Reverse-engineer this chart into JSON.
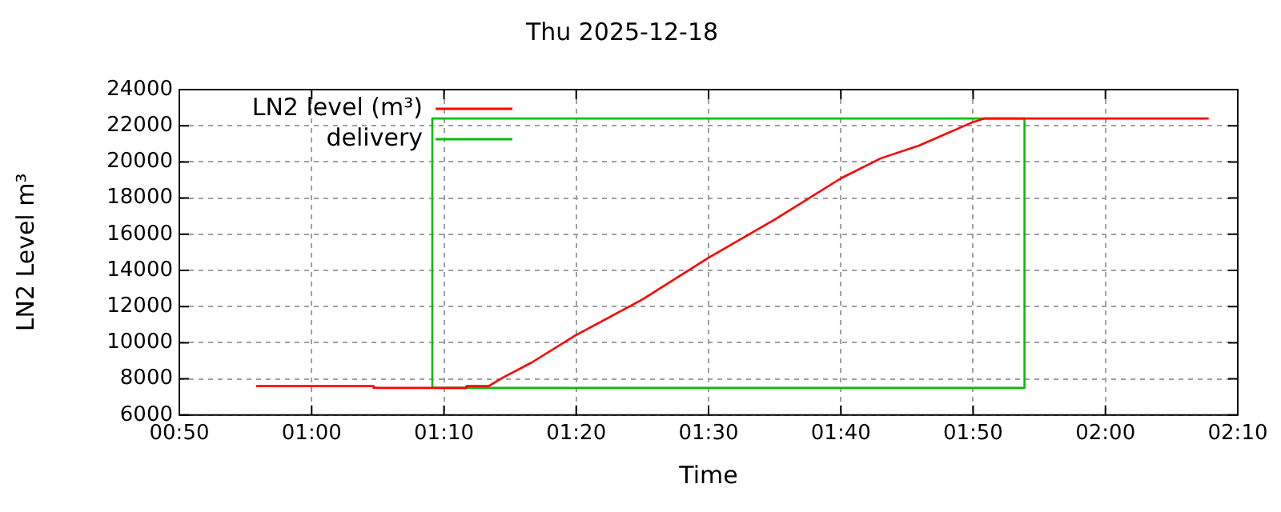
{
  "chart_data": {
    "type": "line",
    "title": "Thu 2025-12-18",
    "xlabel": "Time",
    "ylabel": "LN2 Level m³",
    "series": [
      {
        "name": "LN2 level (m³)",
        "color": "#ff0000",
        "x": [
          0.93,
          1.078,
          1.078,
          1.195,
          1.195,
          1.223,
          1.242,
          1.277,
          1.332,
          1.417,
          1.5,
          1.583,
          1.667,
          1.717,
          1.765,
          1.833,
          1.847,
          2.13
        ],
        "values": [
          7600,
          7600,
          7500,
          7500,
          7600,
          7600,
          8100,
          8900,
          10400,
          12400,
          14700,
          16800,
          19100,
          20200,
          20900,
          22200,
          22400,
          22400
        ]
      },
      {
        "name": "delivery",
        "color": "#00c000",
        "x": [
          1.152,
          1.152,
          1.898,
          1.898
        ],
        "values": [
          7500,
          22400,
          22400,
          7500
        ]
      },
      {
        "color": "#00c000",
        "x": [
          1.152,
          1.898
        ],
        "values": [
          7500,
          7500
        ]
      }
    ],
    "xlim": [
      0.8333,
      2.1667
    ],
    "xticks": [
      {
        "value": 0.8333,
        "label": "00:50"
      },
      {
        "value": 1,
        "label": "01:00"
      },
      {
        "value": 1.1667,
        "label": "01:10"
      },
      {
        "value": 1.3333,
        "label": "01:20"
      },
      {
        "value": 1.5,
        "label": "01:30"
      },
      {
        "value": 1.6667,
        "label": "01:40"
      },
      {
        "value": 1.8333,
        "label": "01:50"
      },
      {
        "value": 2,
        "label": "02:00"
      },
      {
        "value": 2.1667,
        "label": "02:10"
      }
    ],
    "ylim": [
      6000,
      24000
    ],
    "yticks": [
      6000,
      8000,
      10000,
      12000,
      14000,
      16000,
      18000,
      20000,
      22000,
      24000
    ],
    "grid": true,
    "legend": "top left",
    "marker": "none",
    "line_style": "solid"
  }
}
